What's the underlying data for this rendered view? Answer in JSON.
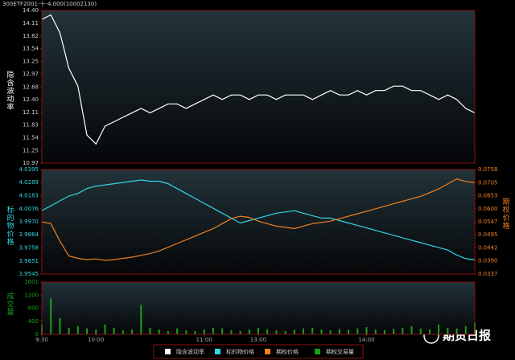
{
  "title": "300ETF2001-十-4.000(10002130)",
  "watermark": "期货日报",
  "chart_data": [
    {
      "type": "line",
      "ylabel": "隐含波动率",
      "x": [
        0,
        5,
        10,
        15,
        20,
        25,
        30,
        35,
        40,
        45,
        50,
        55,
        60,
        65,
        70,
        75,
        80,
        85,
        90,
        95,
        100,
        105,
        110,
        115,
        120,
        125,
        130,
        135,
        140,
        145,
        150,
        155,
        160,
        165,
        170,
        175,
        180,
        185,
        190,
        195,
        200,
        205,
        210,
        215,
        220,
        225,
        230,
        235,
        240
      ],
      "xlim": [
        0,
        240
      ],
      "ylim": [
        10.97,
        14.4
      ],
      "yticks": [
        {
          "value": 14.4,
          "label": "14.40"
        },
        14.11,
        13.82,
        13.54,
        13.25,
        12.97,
        12.68,
        {
          "value": 12.4,
          "label": "12.40"
        },
        12.11,
        11.83,
        11.54,
        11.25,
        10.97
      ],
      "series": [
        {
          "name": "隐含波动率",
          "color": "#ffffff",
          "values": [
            14.2,
            14.3,
            13.9,
            13.1,
            12.7,
            11.6,
            11.4,
            11.8,
            11.9,
            12.0,
            12.1,
            12.2,
            12.1,
            12.2,
            12.3,
            12.3,
            12.2,
            12.3,
            12.4,
            12.5,
            12.4,
            12.5,
            12.5,
            12.4,
            12.5,
            12.5,
            12.4,
            12.5,
            12.5,
            12.5,
            12.4,
            12.5,
            12.6,
            12.5,
            12.5,
            12.6,
            12.5,
            12.6,
            12.6,
            12.7,
            12.7,
            12.6,
            12.6,
            12.5,
            12.4,
            12.5,
            12.4,
            12.2,
            12.1
          ]
        }
      ]
    },
    {
      "type": "line",
      "ylabel": "标的物价格",
      "y2label": "期权价格",
      "x": [
        0,
        5,
        10,
        15,
        20,
        25,
        30,
        35,
        40,
        45,
        50,
        55,
        60,
        65,
        70,
        75,
        80,
        85,
        90,
        95,
        100,
        105,
        110,
        115,
        120,
        125,
        130,
        135,
        140,
        145,
        150,
        155,
        160,
        165,
        170,
        175,
        180,
        185,
        190,
        195,
        200,
        205,
        210,
        215,
        220,
        225,
        230,
        235,
        240
      ],
      "xlim": [
        0,
        240
      ],
      "ylim": [
        3.9545,
        4.0395
      ],
      "yticks": [
        4.0395,
        4.0289,
        4.0183,
        4.0076,
        {
          "value": 3.997,
          "label": "3.9970"
        },
        3.9864,
        3.9758,
        3.9651,
        3.9545
      ],
      "y2lim": [
        0.0337,
        0.0758
      ],
      "y2ticks": [
        0.0758,
        0.0705,
        0.0653,
        {
          "value": 0.06,
          "label": "0.0600"
        },
        0.0547,
        0.0495,
        0.0442,
        {
          "value": 0.039,
          "label": "0.0390"
        },
        0.0337
      ],
      "series": [
        {
          "name": "标的物价格",
          "color": "#33d6e0",
          "values": [
            4.006,
            4.01,
            4.014,
            4.018,
            4.02,
            4.024,
            4.026,
            4.027,
            4.028,
            4.029,
            4.03,
            4.031,
            4.03,
            4.03,
            4.028,
            4.024,
            4.02,
            4.016,
            4.012,
            4.008,
            4.004,
            4.0,
            3.996,
            3.998,
            4.0,
            4.002,
            4.004,
            4.005,
            4.006,
            4.004,
            4.002,
            4.0,
            4.0,
            3.998,
            3.996,
            3.994,
            3.992,
            3.99,
            3.988,
            3.986,
            3.984,
            3.982,
            3.98,
            3.978,
            3.976,
            3.974,
            3.97,
            3.967,
            3.966
          ]
        },
        {
          "name": "期权价格",
          "color": "#f08020",
          "axis": "y2",
          "values": [
            0.0547,
            0.054,
            0.047,
            0.041,
            0.04,
            0.0395,
            0.0398,
            0.0392,
            0.0395,
            0.04,
            0.0405,
            0.0412,
            0.042,
            0.043,
            0.0445,
            0.046,
            0.0475,
            0.049,
            0.0505,
            0.052,
            0.054,
            0.056,
            0.057,
            0.0565,
            0.055,
            0.054,
            0.053,
            0.0525,
            0.052,
            0.053,
            0.054,
            0.0545,
            0.055,
            0.056,
            0.057,
            0.058,
            0.059,
            0.06,
            0.061,
            0.062,
            0.063,
            0.064,
            0.065,
            0.0665,
            0.068,
            0.07,
            0.072,
            0.071,
            0.0705
          ]
        }
      ]
    },
    {
      "type": "bar",
      "ylabel": "成交量",
      "x": [
        0,
        5,
        10,
        15,
        20,
        25,
        30,
        35,
        40,
        45,
        50,
        55,
        60,
        65,
        70,
        75,
        80,
        85,
        90,
        95,
        100,
        105,
        110,
        115,
        120,
        125,
        130,
        135,
        140,
        145,
        150,
        155,
        160,
        165,
        170,
        175,
        180,
        185,
        190,
        195,
        200,
        205,
        210,
        215,
        220,
        225,
        230,
        235,
        240
      ],
      "xlim": [
        0,
        240
      ],
      "xticks": [
        {
          "value": 0,
          "label": "9:30"
        },
        {
          "value": 30,
          "label": "10:00"
        },
        {
          "value": 90,
          "label": "11:00"
        },
        {
          "value": 120,
          "label": "13:00"
        },
        {
          "value": 180,
          "label": "14:00"
        }
      ],
      "ylim": [
        0,
        1601
      ],
      "yticks": [
        1601,
        1200,
        800,
        400,
        0
      ],
      "series": [
        {
          "name": "期权交易量",
          "color": "#1aa01a",
          "values": [
            300,
            1100,
            500,
            200,
            250,
            180,
            150,
            300,
            200,
            120,
            150,
            900,
            200,
            150,
            100,
            180,
            120,
            100,
            150,
            200,
            180,
            120,
            100,
            150,
            200,
            160,
            120,
            100,
            140,
            180,
            200,
            150,
            120,
            160,
            140,
            180,
            220,
            150,
            130,
            170,
            200,
            250,
            180,
            150,
            300,
            200,
            180,
            250,
            350
          ]
        }
      ]
    }
  ]
}
